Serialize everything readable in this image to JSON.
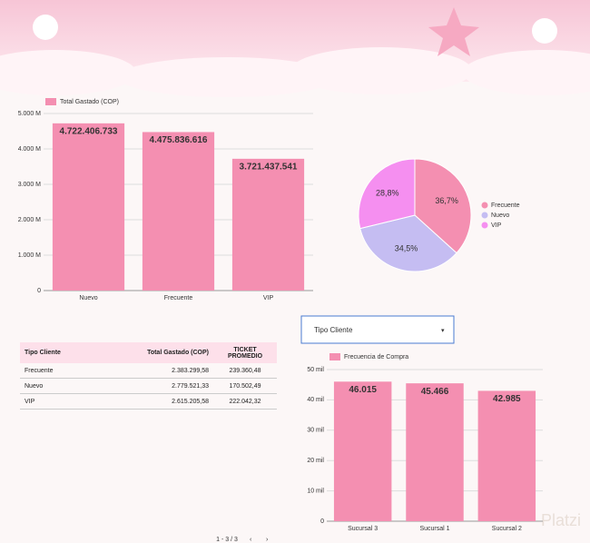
{
  "chart_data": [
    {
      "type": "bar",
      "categories": [
        "Nuevo",
        "Frecuente",
        "VIP"
      ],
      "series": [
        {
          "name": "Total Gastado (COP)",
          "color": "#f48fb1",
          "values": [
            4722406733,
            4475836616,
            3721437541
          ],
          "value_labels": [
            "4.722.406.733",
            "4.475.836.616",
            "3.721.437.541"
          ]
        }
      ],
      "ylim": [
        0,
        5000000000
      ],
      "yticks": [
        0,
        {
          "value": 1000000000,
          "label": "1.000 M"
        },
        {
          "value": 2000000000,
          "label": "2.000 M"
        },
        {
          "value": 3000000000,
          "label": "3.000 M"
        },
        {
          "value": 4000000000,
          "label": "4.000 M"
        },
        {
          "value": 5000000000,
          "label": "5.000 M"
        }
      ],
      "grid": true
    },
    {
      "type": "pie",
      "categories": [
        "Frecuente",
        "Nuevo",
        "VIP"
      ],
      "values": [
        36.7,
        34.5,
        28.8
      ],
      "value_labels": [
        "36,7%",
        "34,5%",
        "28,8%"
      ],
      "colors": [
        "#f48fb1",
        "#c5bdf2",
        "#f58ff0"
      ]
    },
    {
      "type": "bar",
      "categories": [
        "Sucursal 3",
        "Sucursal 1",
        "Sucursal 2"
      ],
      "series": [
        {
          "name": "Frecuencia de Compra",
          "color": "#f48fb1",
          "values": [
            46015,
            45466,
            42985
          ],
          "value_labels": [
            "46.015",
            "45.466",
            "42.985"
          ]
        }
      ],
      "ylim": [
        0,
        50000
      ],
      "yticks": [
        0,
        {
          "value": 10000,
          "label": "10 mil"
        },
        {
          "value": 20000,
          "label": "20 mil"
        },
        {
          "value": 30000,
          "label": "30 mil"
        },
        {
          "value": 40000,
          "label": "40 mil"
        },
        {
          "value": 50000,
          "label": "50 mil"
        }
      ],
      "grid": true
    }
  ],
  "table": {
    "header": [
      "Tipo Cliente",
      "Total Gastado (COP)",
      "TICKET PROMEDIO"
    ],
    "rows": [
      [
        "Frecuente",
        "2.383.299,58",
        "239.360,48"
      ],
      [
        "Nuevo",
        "2.779.521,33",
        "170.502,49"
      ],
      [
        "VIP",
        "2.615.205,58",
        "222.042,32"
      ]
    ]
  },
  "dropdown": {
    "label": "Tipo Cliente"
  },
  "pager": {
    "label": "1 - 3 / 3"
  },
  "watermark": "Platzi"
}
